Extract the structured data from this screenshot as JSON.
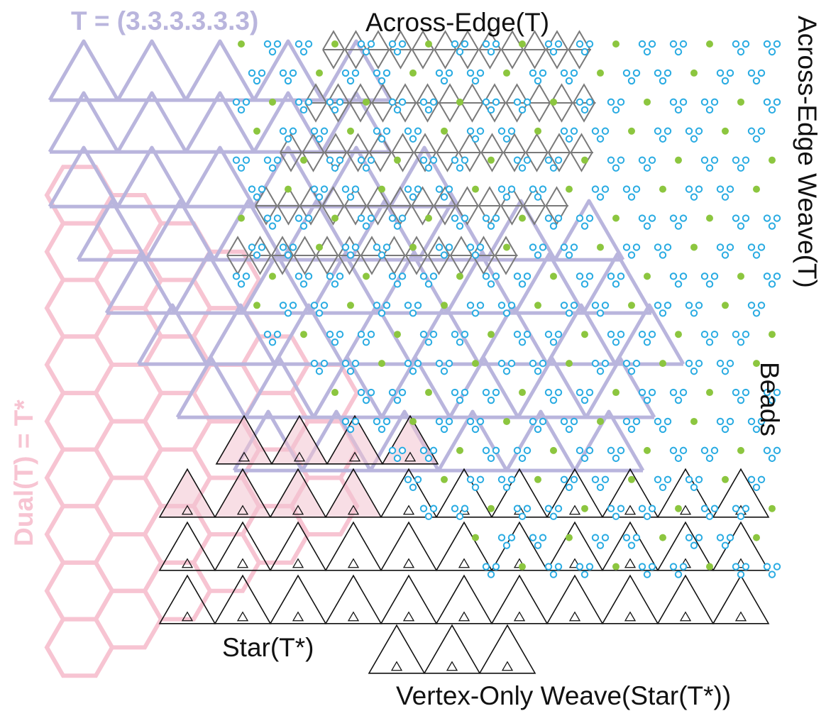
{
  "labels": {
    "tiling": "T = (3.3.3.3.3.3)",
    "across_edge": "Across-Edge(T)",
    "across_edge_weave": "Across-Edge Weave(T)",
    "beads": "Beads",
    "dual": "Dual(T) = T*",
    "star": "Star(T*)",
    "vertex_only_weave": "Vertex-Only Weave(Star(T*))"
  },
  "colors": {
    "triangular_tiling": "#b9b5dd",
    "dual_hexagons": "#f7c4d2",
    "across_edge_lines": "#7a7a7a",
    "star_lines": "#111111",
    "star_fill": "#f2c3cf",
    "bead_green": "#8cc63f",
    "bead_blue": "#29abe2"
  }
}
